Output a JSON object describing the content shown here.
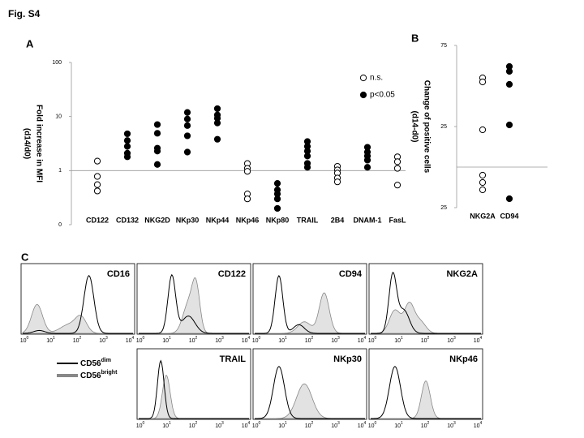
{
  "figure_label": "Fig. S4",
  "chart_data": [
    {
      "panel": "A",
      "type": "strip",
      "log": true,
      "ylabel": [
        "Fold increase in MFI",
        "(d14/d0)"
      ],
      "categories": [
        "CD122",
        "CD132",
        "NKG2D",
        "NKp30",
        "NKp44",
        "NKp46",
        "NKp80",
        "TRAIL",
        "2B4",
        "DNAM-1",
        "FasL"
      ],
      "ylim": [
        0.1,
        100
      ],
      "yticks": [
        {
          "value": 0.1,
          "label": "0"
        },
        1,
        10,
        100
      ],
      "reference_line": 1,
      "legend": "top-right",
      "series": [
        {
          "name": "n.s.",
          "marker": "open",
          "color": "#000000",
          "values": [
            [
              1.5,
              0.78,
              0.55,
              0.42
            ],
            [],
            [],
            [],
            [],
            [
              1.35,
              1.1,
              0.97,
              0.37,
              0.3
            ],
            [],
            [],
            [
              1.2,
              1.03,
              0.9,
              0.73,
              0.62
            ],
            [],
            [
              1.8,
              1.46,
              1.1,
              0.54
            ]
          ]
        },
        {
          "name": "p<0.05",
          "marker": "filled",
          "color": "#000000",
          "values": [
            [],
            [
              4.8,
              3.6,
              2.8,
              2.1,
              1.8
            ],
            [
              7.1,
              4.9,
              2.6,
              2.3,
              1.3
            ],
            [
              11.9,
              9,
              6.8,
              4.4,
              2.2
            ],
            [
              14,
              10.7,
              9.3,
              7.6,
              3.8
            ],
            [],
            [
              0.58,
              0.44,
              0.37,
              0.3,
              0.2
            ],
            [
              3.45,
              2.8,
              2.3,
              1.86,
              1.36,
              1.15
            ],
            [],
            [
              2.7,
              2.2,
              1.86,
              1.56,
              1.15
            ],
            []
          ]
        }
      ]
    },
    {
      "panel": "B",
      "type": "strip",
      "log": false,
      "ylabel": [
        "Change of positive cells",
        "(d14-d0)"
      ],
      "categories": [
        "NKG2A",
        "CD94"
      ],
      "ylim": [
        -25,
        75
      ],
      "yticks": [
        {
          "value": -25,
          "label": "25"
        },
        25,
        75
      ],
      "reference_line": 0,
      "series": [
        {
          "marker": "open",
          "color": "#000000",
          "values": [
            [
              55,
              52.5,
              23,
              -5,
              -9.5,
              -14
            ],
            []
          ]
        },
        {
          "marker": "filled",
          "color": "#000000",
          "values": [
            [],
            [
              62,
              59,
              51,
              26,
              -19.5
            ]
          ]
        }
      ]
    }
  ],
  "panel_c": {
    "panel": "C",
    "histograms": [
      "CD16",
      "CD122",
      "CD94",
      "NKG2A",
      "TRAIL",
      "NKp30",
      "NKp46"
    ],
    "xtick_labels": [
      {
        "base": "10",
        "sup": "0"
      },
      {
        "base": "10",
        "sup": "1"
      },
      {
        "base": "10",
        "sup": "2"
      },
      {
        "base": "10",
        "sup": "3"
      },
      {
        "base": "10",
        "sup": "4"
      }
    ],
    "legend": [
      {
        "base": "CD56",
        "sup": "dim",
        "color": "#000000"
      },
      {
        "base": "CD56",
        "sup": "bright",
        "color": "#888888"
      }
    ]
  }
}
